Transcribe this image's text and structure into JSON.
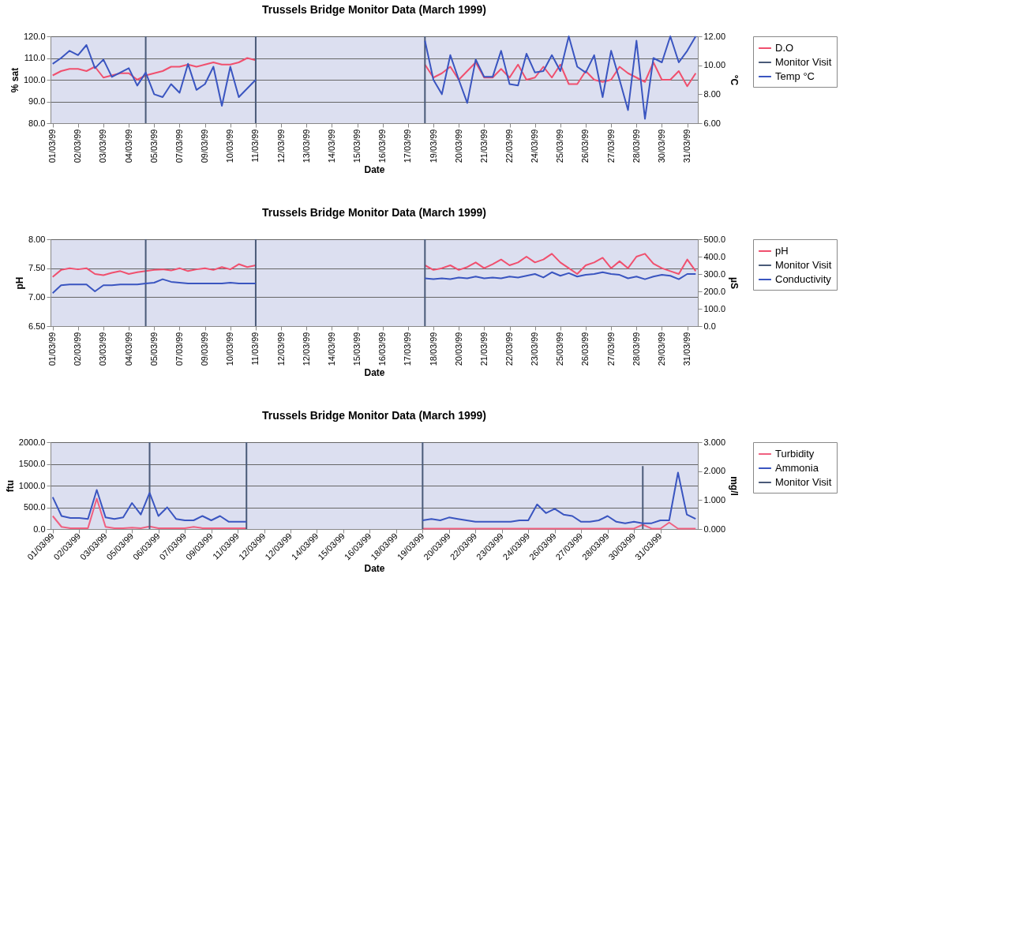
{
  "chart_data": [
    {
      "type": "line",
      "title": "Trussels Bridge Monitor Data (March 1999)",
      "xlabel": "Date",
      "ylabel": "% sat",
      "y2label": "°C",
      "grid": "y",
      "legend": "right",
      "categories": [
        "01/03/99",
        null,
        null,
        "02/03/99",
        null,
        null,
        "03/03/99",
        null,
        null,
        "04/03/99",
        null,
        null,
        "05/03/99",
        null,
        null,
        "07/03/99",
        null,
        null,
        "09/03/99",
        null,
        null,
        "10/03/99",
        null,
        null,
        "11/03/99",
        null,
        null,
        "12/03/99",
        null,
        null,
        "13/03/99",
        null,
        null,
        "14/03/99",
        null,
        null,
        "15/03/99",
        null,
        null,
        "16/03/99",
        null,
        null,
        "17/03/99",
        null,
        null,
        "19/03/99",
        null,
        null,
        "20/03/99",
        null,
        null,
        "21/03/99",
        null,
        null,
        "22/03/99",
        null,
        null,
        "24/03/99",
        null,
        null,
        "25/03/99",
        null,
        null,
        "26/03/99",
        null,
        null,
        "27/03/99",
        null,
        null,
        "28/03/99",
        null,
        null,
        "30/03/99",
        null,
        null,
        "31/03/99",
        null
      ],
      "ylim": [
        80,
        120
      ],
      "yticks": [
        {
          "value": 80,
          "label": "80.0"
        },
        {
          "value": 90,
          "label": "90.0"
        },
        {
          "value": 100,
          "label": "100.0"
        },
        {
          "value": 110,
          "label": "110.0"
        },
        {
          "value": 120,
          "label": "120.0"
        }
      ],
      "y2lim": [
        6,
        12
      ],
      "y2ticks": [
        {
          "value": 6,
          "label": "6.00"
        },
        {
          "value": 8,
          "label": "8.00"
        },
        {
          "value": 10,
          "label": "10.00"
        },
        {
          "value": 12,
          "label": "12.00"
        }
      ],
      "series": [
        {
          "name": "D.O",
          "color": "#f0506e",
          "values": [
            102,
            104,
            105,
            105,
            104,
            106,
            101,
            102,
            103,
            103,
            100,
            102,
            103,
            104,
            106,
            106,
            107,
            106,
            107,
            108,
            107,
            107,
            108,
            110,
            109,
            null,
            null,
            null,
            null,
            null,
            null,
            null,
            null,
            null,
            null,
            null,
            null,
            null,
            null,
            null,
            null,
            null,
            null,
            null,
            107,
            101,
            103,
            106,
            100,
            104,
            108,
            101,
            101,
            105,
            101,
            107,
            100,
            101,
            106,
            101,
            107,
            98,
            98,
            104,
            100,
            99,
            100,
            106,
            103,
            101,
            99,
            108,
            100,
            100,
            104,
            97,
            103
          ]
        },
        {
          "name": "Monitor Visit",
          "type": "bar",
          "color": "#4a5a78",
          "values": [
            null,
            null,
            null,
            null,
            null,
            null,
            null,
            null,
            null,
            null,
            null,
            120,
            null,
            null,
            null,
            null,
            null,
            null,
            null,
            null,
            null,
            null,
            null,
            null,
            120,
            null,
            null,
            null,
            null,
            null,
            null,
            null,
            null,
            null,
            null,
            null,
            null,
            null,
            null,
            null,
            null,
            null,
            null,
            null,
            120,
            null,
            null,
            null,
            null,
            null,
            null,
            null,
            null,
            null,
            null,
            null,
            null,
            null,
            null,
            null,
            null,
            null,
            null,
            null,
            null,
            null,
            null,
            null,
            null,
            null,
            null,
            null,
            null,
            null,
            null,
            null,
            null
          ]
        },
        {
          "name": "Temp °C",
          "axis": "y2",
          "color": "#3a55c0",
          "values": [
            10.1,
            10.5,
            11.0,
            10.7,
            11.4,
            9.8,
            10.4,
            9.2,
            9.5,
            9.8,
            8.6,
            9.5,
            8.0,
            7.8,
            8.7,
            8.1,
            10.1,
            8.3,
            8.7,
            9.9,
            7.2,
            9.9,
            7.8,
            8.4,
            9.0,
            null,
            null,
            null,
            null,
            null,
            null,
            null,
            null,
            null,
            null,
            null,
            null,
            null,
            null,
            null,
            null,
            null,
            null,
            null,
            11.7,
            9.0,
            8.0,
            10.7,
            9.0,
            7.4,
            10.4,
            9.2,
            9.2,
            11.0,
            8.7,
            8.6,
            10.8,
            9.5,
            9.6,
            10.7,
            9.6,
            12.0,
            9.9,
            9.5,
            10.7,
            7.8,
            11.0,
            9.0,
            6.9,
            11.7,
            6.3,
            10.5,
            10.2,
            12.0,
            10.2,
            11.0,
            12.0
          ]
        }
      ]
    },
    {
      "type": "line",
      "title": "Trussels Bridge Monitor Data (March 1999)",
      "xlabel": "Date",
      "ylabel": "pH",
      "y2label": "µS",
      "grid": "y",
      "legend": "right",
      "categories": [
        "01/03/99",
        null,
        null,
        "02/03/99",
        null,
        null,
        "03/03/99",
        null,
        null,
        "04/03/99",
        null,
        null,
        "05/03/99",
        null,
        null,
        "07/03/99",
        null,
        null,
        "09/03/99",
        null,
        null,
        "10/03/99",
        null,
        null,
        "11/03/99",
        null,
        null,
        "12/03/99",
        null,
        null,
        "12/03/99",
        null,
        null,
        "14/03/99",
        null,
        null,
        "15/03/99",
        null,
        null,
        "16/03/99",
        null,
        null,
        "17/03/99",
        null,
        null,
        "18/03/99",
        null,
        null,
        "20/03/99",
        null,
        null,
        "21/03/99",
        null,
        null,
        "22/03/99",
        null,
        null,
        "23/03/99",
        null,
        null,
        "25/03/99",
        null,
        null,
        "26/03/99",
        null,
        null,
        "27/03/99",
        null,
        null,
        "28/03/99",
        null,
        null,
        "29/03/99",
        null,
        null,
        "31/03/99",
        null
      ],
      "ylim": [
        6.5,
        8
      ],
      "yticks": [
        {
          "value": 6.5,
          "label": "6.50"
        },
        {
          "value": 7,
          "label": "7.00"
        },
        {
          "value": 7.5,
          "label": "7.50"
        },
        {
          "value": 8,
          "label": "8.00"
        }
      ],
      "y2lim": [
        0,
        500
      ],
      "y2ticks": [
        {
          "value": 0,
          "label": "0.0"
        },
        {
          "value": 100,
          "label": "100.0"
        },
        {
          "value": 200,
          "label": "200.0"
        },
        {
          "value": 300,
          "label": "300.0"
        },
        {
          "value": 400,
          "label": "400.0"
        },
        {
          "value": 500,
          "label": "500.0"
        }
      ],
      "series": [
        {
          "name": "pH",
          "color": "#f0506e",
          "values": [
            7.35,
            7.47,
            7.5,
            7.48,
            7.5,
            7.4,
            7.38,
            7.42,
            7.45,
            7.4,
            7.43,
            7.45,
            7.47,
            7.48,
            7.46,
            7.5,
            7.45,
            7.48,
            7.5,
            7.47,
            7.52,
            7.48,
            7.57,
            7.52,
            7.55,
            null,
            null,
            null,
            null,
            null,
            null,
            null,
            null,
            null,
            null,
            null,
            null,
            null,
            null,
            null,
            null,
            null,
            null,
            null,
            7.55,
            7.47,
            7.5,
            7.55,
            7.47,
            7.52,
            7.6,
            7.5,
            7.57,
            7.65,
            7.55,
            7.6,
            7.7,
            7.6,
            7.65,
            7.75,
            7.6,
            7.5,
            7.4,
            7.55,
            7.6,
            7.68,
            7.5,
            7.62,
            7.5,
            7.7,
            7.75,
            7.58,
            7.5,
            7.45,
            7.4,
            7.65,
            7.45
          ]
        },
        {
          "name": "Monitor Visit",
          "type": "bar",
          "color": "#4a5a78",
          "values": [
            null,
            null,
            null,
            null,
            null,
            null,
            null,
            null,
            null,
            null,
            null,
            8,
            null,
            null,
            null,
            null,
            null,
            null,
            null,
            null,
            null,
            null,
            null,
            null,
            8,
            null,
            null,
            null,
            null,
            null,
            null,
            null,
            null,
            null,
            null,
            null,
            null,
            null,
            null,
            null,
            null,
            null,
            null,
            null,
            8,
            null,
            null,
            null,
            null,
            null,
            null,
            null,
            null,
            null,
            null,
            null,
            null,
            null,
            null,
            null,
            null,
            null,
            null,
            null,
            null,
            null,
            null,
            null,
            null,
            null,
            null,
            null,
            null,
            null,
            null,
            null,
            null
          ]
        },
        {
          "name": "Conductivity",
          "axis": "y2",
          "color": "#3a55c0",
          "values": [
            190,
            235,
            240,
            240,
            240,
            200,
            235,
            235,
            240,
            240,
            240,
            245,
            250,
            270,
            255,
            250,
            245,
            245,
            245,
            245,
            245,
            250,
            245,
            245,
            245,
            null,
            null,
            null,
            null,
            null,
            null,
            null,
            null,
            null,
            null,
            null,
            null,
            null,
            null,
            null,
            null,
            null,
            null,
            null,
            275,
            270,
            275,
            270,
            280,
            275,
            285,
            275,
            280,
            275,
            285,
            280,
            290,
            300,
            280,
            310,
            290,
            305,
            285,
            295,
            300,
            310,
            300,
            295,
            275,
            285,
            270,
            285,
            295,
            290,
            270,
            300,
            300
          ]
        }
      ]
    },
    {
      "type": "line",
      "title": "Trussels Bridge Monitor Data (March 1999)",
      "xlabel": "Date",
      "ylabel": "ftu",
      "y2label": "mg/l",
      "grid": "y",
      "legend": "right",
      "categories": [
        "01/03/99",
        null,
        null,
        "02/03/99",
        null,
        null,
        "03/03/99",
        null,
        null,
        "05/03/99",
        null,
        null,
        "06/03/99",
        null,
        null,
        "07/03/99",
        null,
        null,
        "09/03/99",
        null,
        null,
        "11/03/99",
        null,
        null,
        "12/03/99",
        null,
        null,
        "12/03/99",
        null,
        null,
        "14/03/99",
        null,
        null,
        "15/03/99",
        null,
        null,
        "16/03/99",
        null,
        null,
        "18/03/99",
        null,
        null,
        "19/03/99",
        null,
        null,
        "20/03/99",
        null,
        null,
        "22/03/99",
        null,
        null,
        "23/03/99",
        null,
        null,
        "24/03/99",
        null,
        null,
        "26/03/99",
        null,
        null,
        "27/03/99",
        null,
        null,
        "28/03/99",
        null,
        null,
        "30/03/99",
        null,
        null,
        "31/03/99",
        null,
        null,
        null,
        null
      ],
      "ylim": [
        0,
        2000
      ],
      "yticks": [
        {
          "value": 0,
          "label": "0.0"
        },
        {
          "value": 500,
          "label": "500.0"
        },
        {
          "value": 1000,
          "label": "1000.0"
        },
        {
          "value": 1500,
          "label": "1500.0"
        },
        {
          "value": 2000,
          "label": "2000.0"
        }
      ],
      "y2lim": [
        0,
        3
      ],
      "y2ticks": [
        {
          "value": 0,
          "label": "0.000"
        },
        {
          "value": 1,
          "label": "1.000"
        },
        {
          "value": 2,
          "label": "2.000"
        },
        {
          "value": 3,
          "label": "3.000"
        }
      ],
      "series": [
        {
          "name": "Turbidity",
          "color": "#f06080",
          "values": [
            300,
            50,
            20,
            20,
            20,
            700,
            50,
            20,
            20,
            30,
            20,
            60,
            20,
            20,
            20,
            20,
            50,
            20,
            20,
            20,
            20,
            20,
            20,
            null,
            null,
            null,
            null,
            null,
            null,
            null,
            null,
            null,
            null,
            null,
            null,
            null,
            null,
            null,
            null,
            null,
            null,
            null,
            10,
            10,
            10,
            10,
            10,
            10,
            10,
            10,
            10,
            10,
            10,
            10,
            10,
            10,
            10,
            10,
            10,
            10,
            10,
            10,
            10,
            10,
            10,
            10,
            10,
            100,
            10,
            10,
            150,
            10,
            10,
            10
          ]
        },
        {
          "name": "Ammonia",
          "axis": "y2",
          "color": "#3a55c0",
          "values": [
            1.1,
            0.45,
            0.38,
            0.38,
            0.35,
            1.35,
            0.4,
            0.35,
            0.4,
            0.9,
            0.5,
            1.25,
            0.45,
            0.75,
            0.35,
            0.3,
            0.3,
            0.45,
            0.3,
            0.45,
            0.25,
            0.25,
            0.25,
            null,
            null,
            null,
            null,
            null,
            null,
            null,
            null,
            null,
            null,
            null,
            null,
            null,
            null,
            null,
            null,
            null,
            null,
            null,
            0.3,
            0.35,
            0.3,
            0.4,
            0.35,
            0.3,
            0.25,
            0.25,
            0.25,
            0.25,
            0.25,
            0.3,
            0.3,
            0.85,
            0.55,
            0.7,
            0.5,
            0.45,
            0.25,
            0.25,
            0.3,
            0.45,
            0.25,
            0.2,
            0.25,
            0.2,
            0.2,
            0.3,
            0.3,
            1.95,
            0.5,
            0.35
          ]
        },
        {
          "name": "Monitor Visit",
          "type": "bar",
          "color": "#4a5a78",
          "values": [
            null,
            null,
            null,
            null,
            null,
            null,
            null,
            null,
            null,
            null,
            null,
            2000,
            null,
            null,
            null,
            null,
            null,
            null,
            null,
            null,
            null,
            null,
            2000,
            null,
            null,
            null,
            null,
            null,
            null,
            null,
            null,
            null,
            null,
            null,
            null,
            null,
            null,
            null,
            null,
            null,
            null,
            null,
            2000,
            null,
            null,
            null,
            null,
            null,
            null,
            null,
            null,
            null,
            null,
            null,
            null,
            null,
            null,
            null,
            null,
            null,
            null,
            null,
            null,
            null,
            null,
            null,
            null,
            1450,
            null,
            null,
            null,
            null,
            null,
            null
          ]
        }
      ]
    }
  ]
}
